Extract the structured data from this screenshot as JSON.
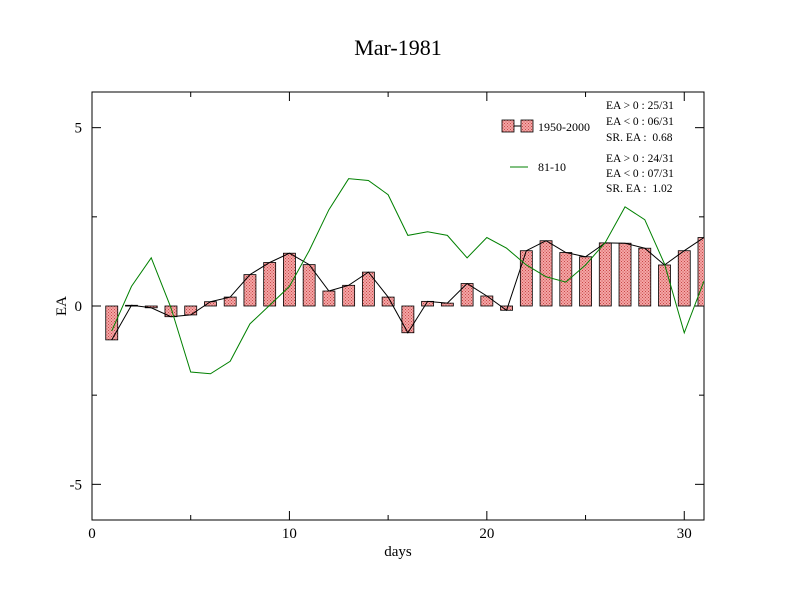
{
  "chart_data": {
    "type": "bar",
    "title": "Mar-1981",
    "xlabel": "days",
    "ylabel": "EA",
    "xlim": [
      0,
      31
    ],
    "ylim": [
      -6,
      6
    ],
    "x_ticks": [
      0,
      10,
      20,
      30
    ],
    "x_tick_labels": [
      "0",
      "10",
      "20",
      "30"
    ],
    "y_ticks": [
      -5,
      0,
      5
    ],
    "y_tick_labels": [
      "-5",
      "0",
      "5"
    ],
    "grid": false,
    "legend_position": "top-right",
    "x": [
      1,
      2,
      3,
      4,
      5,
      6,
      7,
      8,
      9,
      10,
      11,
      12,
      13,
      14,
      15,
      16,
      17,
      18,
      19,
      20,
      21,
      22,
      23,
      24,
      25,
      26,
      27,
      28,
      29,
      30,
      31
    ],
    "series": [
      {
        "name": "1950-2000",
        "kind": "bar",
        "color": "#f08080",
        "values": [
          -0.95,
          0.02,
          -0.05,
          -0.3,
          -0.25,
          0.12,
          0.25,
          0.88,
          1.22,
          1.48,
          1.16,
          0.42,
          0.58,
          0.95,
          0.25,
          -0.75,
          0.13,
          0.08,
          0.63,
          0.28,
          -0.12,
          1.55,
          1.83,
          1.5,
          1.38,
          1.77,
          1.76,
          1.62,
          1.15,
          1.55,
          1.92
        ]
      },
      {
        "name": "81-10",
        "kind": "line",
        "color": "#008000",
        "values": [
          -0.7,
          0.55,
          1.35,
          -0.05,
          -1.85,
          -1.9,
          -1.55,
          -0.5,
          0.02,
          0.55,
          1.55,
          2.7,
          3.57,
          3.52,
          3.12,
          1.98,
          2.08,
          1.98,
          1.35,
          1.92,
          1.62,
          1.15,
          0.82,
          0.67,
          1.15,
          1.78,
          2.78,
          2.42,
          1.18,
          -0.75,
          0.7
        ]
      }
    ],
    "stats": [
      {
        "lines": [
          "EA > 0 : 25/31",
          "EA < 0 : 06/31",
          "SR. EA :  0.68"
        ]
      },
      {
        "lines": [
          "EA > 0 : 24/31",
          "EA < 0 : 07/31",
          "SR. EA :  1.02"
        ]
      }
    ]
  }
}
